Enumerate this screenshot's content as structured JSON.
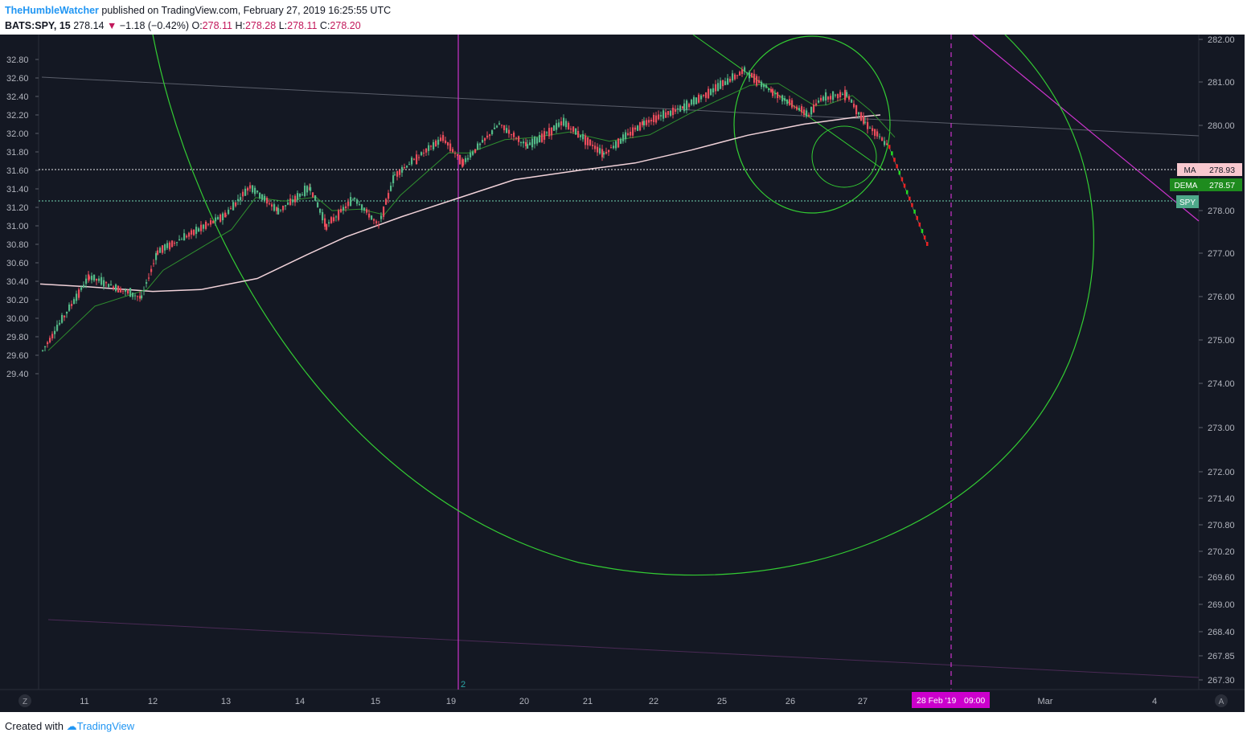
{
  "header": {
    "username": "TheHumbleWatcher",
    "published": "published on TradingView.com, February 27, 2019 16:25:55 UTC",
    "symbol": "BATS:SPY, 15",
    "last": "278.14",
    "change": "−1.18 (−0.42%)",
    "open_label": "O:",
    "open": "278.11",
    "high_label": "H:",
    "high": "278.28",
    "low_label": "L:",
    "low": "278.11",
    "close_label": "C:",
    "close": "278.20"
  },
  "footer": {
    "created_with": "Created with",
    "brand": "TradingView"
  },
  "colors": {
    "background": "#141823",
    "up": "#53b987",
    "down": "#eb4d5c",
    "ma": "#f2d3da",
    "circle": "#33cc33",
    "magenta": "#cc33cc",
    "ma_badge": "#f8c8cf",
    "dema_badge": "#1e8b1e",
    "spy_badge": "#4ea98a"
  },
  "chart_data": {
    "type": "candlestick",
    "symbol": "BATS:SPY",
    "interval": "15",
    "left_axis": {
      "ticks": [
        "32.80",
        "32.60",
        "32.40",
        "32.20",
        "32.00",
        "31.80",
        "31.60",
        "31.40",
        "31.20",
        "31.00",
        "30.80",
        "30.60",
        "30.40",
        "30.20",
        "30.00",
        "29.80",
        "29.60",
        "29.40"
      ]
    },
    "right_axis": {
      "ticks": [
        "282.00",
        "281.00",
        "280.00",
        "279.00",
        "278.00",
        "277.00",
        "276.00",
        "275.00",
        "274.00",
        "273.00",
        "272.00",
        "271.40",
        "270.80",
        "270.20",
        "269.60",
        "269.00",
        "268.40",
        "267.85",
        "267.30"
      ]
    },
    "x_ticks": [
      "11",
      "12",
      "13",
      "14",
      "15",
      "19",
      "20",
      "21",
      "22",
      "25",
      "26",
      "27",
      "Mar",
      "4"
    ],
    "x_highlight": "28 Feb '19",
    "x_highlight_time": "09:00",
    "corner_left": "Z",
    "corner_right": "A",
    "pane_number": "2",
    "badges": [
      {
        "label": "MA",
        "value": "278.93"
      },
      {
        "label": "DEMA",
        "value": "278.57"
      },
      {
        "label": "SPY",
        "value": ""
      }
    ],
    "price_path": [
      [
        "11",
        29.65
      ],
      [
        "11",
        30.45
      ],
      [
        "12",
        30.22
      ],
      [
        "12",
        30.72
      ],
      [
        "13",
        31.12
      ],
      [
        "13",
        31.43
      ],
      [
        "14",
        31.16
      ],
      [
        "14",
        31.41
      ],
      [
        "14",
        31.0
      ],
      [
        "15",
        31.3
      ],
      [
        "15",
        31.0
      ],
      [
        "15",
        31.55
      ],
      [
        "19",
        31.95
      ],
      [
        "19",
        31.68
      ],
      [
        "20",
        32.1
      ],
      [
        "20",
        31.86
      ],
      [
        "21",
        32.12
      ],
      [
        "21",
        31.78
      ],
      [
        "22",
        32.12
      ],
      [
        "22",
        32.28
      ],
      [
        "25",
        32.68
      ],
      [
        "25",
        32.45
      ],
      [
        "26",
        32.2
      ],
      [
        "26",
        32.38
      ],
      [
        "27",
        32.43
      ],
      [
        "27",
        32.12
      ],
      [
        "27",
        31.85
      ]
    ],
    "projection": {
      "from": 31.85,
      "to": 30.8,
      "unit": "left_axis"
    }
  }
}
